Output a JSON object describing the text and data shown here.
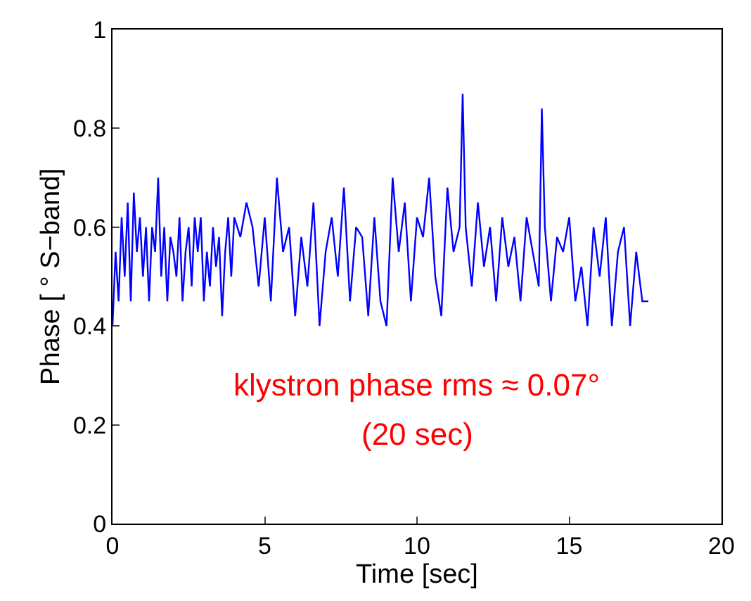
{
  "chart_data": {
    "type": "line",
    "xlabel": "Time [sec]",
    "ylabel": "Phase [ ° S−band]",
    "x": [
      0,
      0.1,
      0.2,
      0.3,
      0.4,
      0.5,
      0.6,
      0.7,
      0.8,
      0.9,
      1.0,
      1.1,
      1.2,
      1.3,
      1.4,
      1.5,
      1.6,
      1.7,
      1.8,
      1.9,
      2.0,
      2.1,
      2.2,
      2.3,
      2.4,
      2.5,
      2.6,
      2.7,
      2.8,
      2.9,
      3.0,
      3.1,
      3.2,
      3.3,
      3.4,
      3.5,
      3.6,
      3.7,
      3.8,
      3.9,
      4.0,
      4.2,
      4.4,
      4.6,
      4.8,
      5.0,
      5.2,
      5.4,
      5.6,
      5.8,
      6.0,
      6.2,
      6.4,
      6.6,
      6.8,
      7.0,
      7.2,
      7.4,
      7.6,
      7.8,
      8.0,
      8.2,
      8.4,
      8.6,
      8.8,
      9.0,
      9.2,
      9.4,
      9.6,
      9.8,
      10.0,
      10.2,
      10.4,
      10.6,
      10.8,
      11.0,
      11.2,
      11.4,
      11.5,
      11.6,
      11.8,
      12.0,
      12.2,
      12.4,
      12.6,
      12.8,
      13.0,
      13.2,
      13.4,
      13.6,
      13.8,
      14.0,
      14.1,
      14.2,
      14.4,
      14.6,
      14.8,
      15.0,
      15.2,
      15.4,
      15.6,
      15.8,
      16.0,
      16.2,
      16.4,
      16.6,
      16.8,
      17.0,
      17.2,
      17.4,
      17.6
    ],
    "values": [
      0.4,
      0.55,
      0.45,
      0.62,
      0.5,
      0.65,
      0.45,
      0.67,
      0.55,
      0.62,
      0.5,
      0.6,
      0.45,
      0.6,
      0.55,
      0.7,
      0.5,
      0.6,
      0.45,
      0.58,
      0.55,
      0.5,
      0.62,
      0.45,
      0.55,
      0.6,
      0.48,
      0.62,
      0.55,
      0.62,
      0.45,
      0.55,
      0.48,
      0.6,
      0.52,
      0.58,
      0.42,
      0.55,
      0.62,
      0.5,
      0.62,
      0.58,
      0.65,
      0.6,
      0.48,
      0.62,
      0.45,
      0.7,
      0.55,
      0.6,
      0.42,
      0.58,
      0.48,
      0.65,
      0.4,
      0.55,
      0.62,
      0.5,
      0.68,
      0.45,
      0.6,
      0.58,
      0.42,
      0.62,
      0.45,
      0.4,
      0.7,
      0.55,
      0.65,
      0.45,
      0.62,
      0.58,
      0.7,
      0.5,
      0.42,
      0.68,
      0.55,
      0.6,
      0.87,
      0.6,
      0.48,
      0.65,
      0.52,
      0.6,
      0.45,
      0.62,
      0.52,
      0.58,
      0.45,
      0.62,
      0.55,
      0.48,
      0.84,
      0.6,
      0.45,
      0.58,
      0.55,
      0.62,
      0.45,
      0.52,
      0.4,
      0.6,
      0.5,
      0.62,
      0.4,
      0.55,
      0.6,
      0.4,
      0.55,
      0.45,
      0.45
    ],
    "color": "#0000ff",
    "xlim": [
      0,
      20
    ],
    "xticks": [
      0,
      5,
      10,
      15,
      20
    ],
    "ylim": [
      0,
      1
    ],
    "yticks": [
      0,
      0.2,
      0.4,
      0.6,
      0.8,
      1
    ],
    "legend": false,
    "marker": "none",
    "line_style": "solid",
    "annotations": [
      "klystron phase rms ≈ 0.07°",
      "(20 sec)"
    ]
  }
}
